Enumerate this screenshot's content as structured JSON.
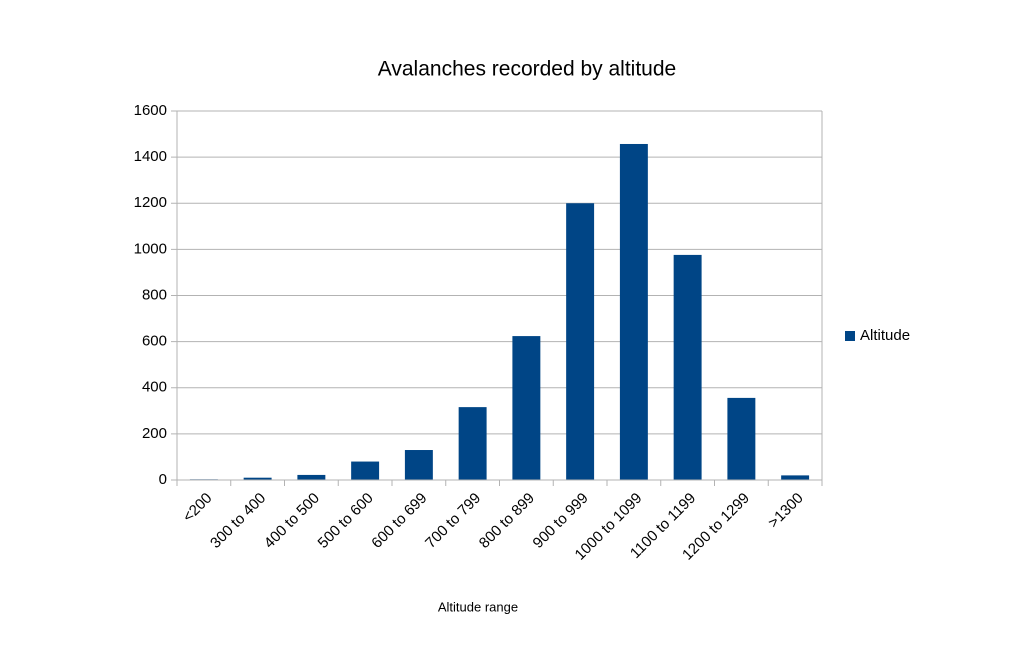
{
  "chart_data": {
    "type": "bar",
    "title": "Avalanches recorded by altitude",
    "x_label": "Altitude range",
    "categories": [
      "<200",
      "300 to 400",
      "400 to 500",
      "500 to 600",
      "600 to 699",
      "700 to 799",
      "800 to 899",
      "900 to 999",
      "1000 to 1099",
      "1100 to 1199",
      "1200 to 1299",
      ">1300"
    ],
    "series": [
      {
        "name": "Altitude",
        "color": "#004586",
        "values": [
          3,
          10,
          22,
          80,
          130,
          316,
          624,
          1200,
          1457,
          976,
          356,
          20
        ]
      }
    ],
    "ylim": [
      0,
      1600
    ],
    "yticks": [
      0,
      200,
      400,
      600,
      800,
      1000,
      1200,
      1400,
      1600
    ],
    "grid": true,
    "legend": "right"
  }
}
